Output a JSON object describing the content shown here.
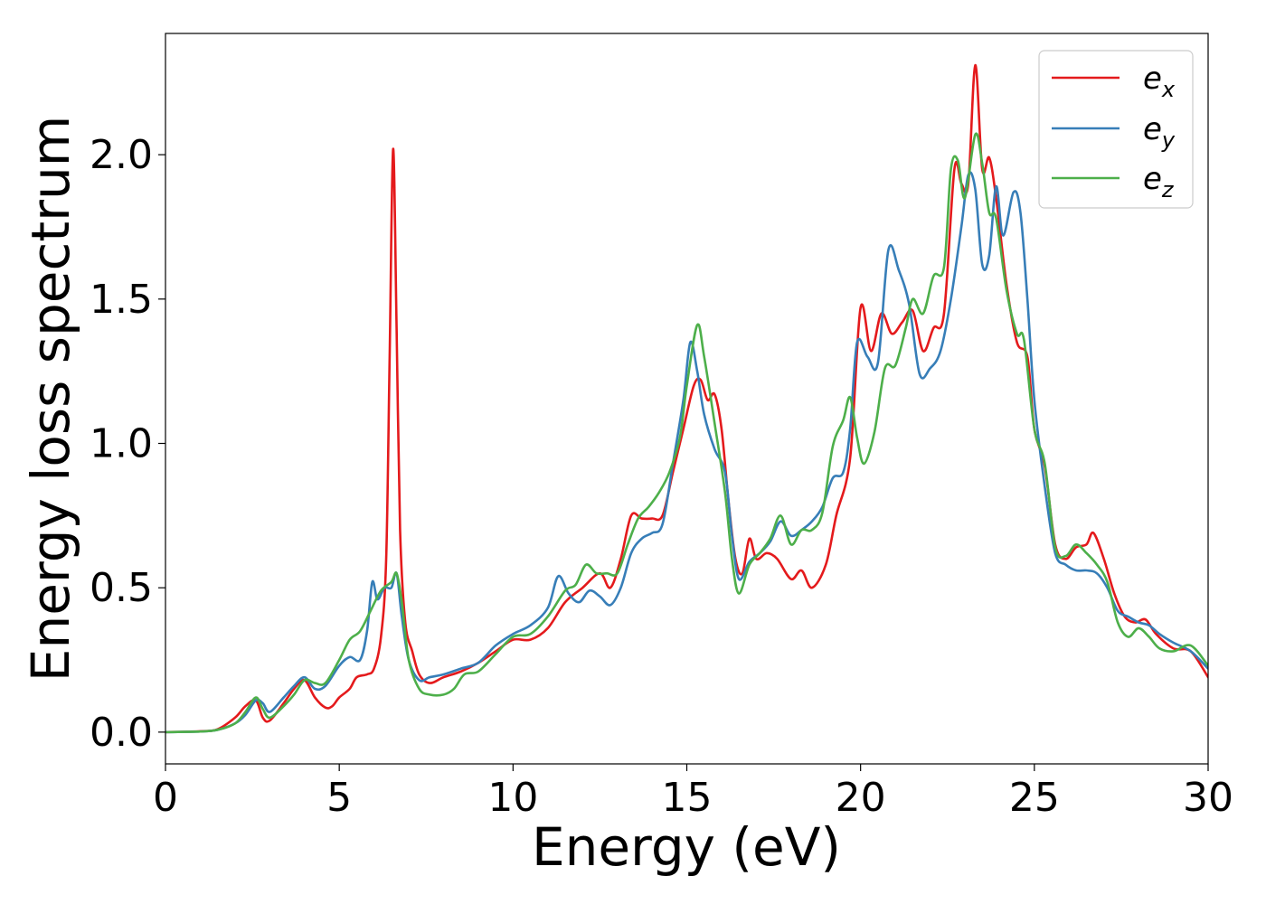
{
  "chart_data": {
    "type": "line",
    "title": "",
    "xlabel": "Energy (eV)",
    "ylabel": "Energy loss spectrum",
    "xlim": [
      0,
      30
    ],
    "ylim": [
      -0.11,
      2.42
    ],
    "x_ticks": [
      "0",
      "5",
      "10",
      "15",
      "20",
      "25",
      "30"
    ],
    "y_ticks": [
      "0.0",
      "0.5",
      "1.0",
      "1.5",
      "2.0"
    ],
    "grid": false,
    "legend_position": "top-right",
    "legend": [
      {
        "base": "e",
        "sub": "x"
      },
      {
        "base": "e",
        "sub": "y"
      },
      {
        "base": "e",
        "sub": "z"
      }
    ],
    "series": [
      {
        "name": "e_x",
        "color": "#e41a1c",
        "points": [
          [
            0,
            0
          ],
          [
            1,
            0.003
          ],
          [
            1.5,
            0.01
          ],
          [
            2,
            0.05
          ],
          [
            2.3,
            0.09
          ],
          [
            2.6,
            0.11
          ],
          [
            2.8,
            0.05
          ],
          [
            3.0,
            0.04
          ],
          [
            3.4,
            0.1
          ],
          [
            3.7,
            0.15
          ],
          [
            4.0,
            0.18
          ],
          [
            4.3,
            0.12
          ],
          [
            4.6,
            0.085
          ],
          [
            4.8,
            0.09
          ],
          [
            5.0,
            0.12
          ],
          [
            5.3,
            0.15
          ],
          [
            5.5,
            0.19
          ],
          [
            5.8,
            0.2
          ],
          [
            6.0,
            0.22
          ],
          [
            6.2,
            0.33
          ],
          [
            6.35,
            0.6
          ],
          [
            6.45,
            1.3
          ],
          [
            6.55,
            2.02
          ],
          [
            6.65,
            1.4
          ],
          [
            6.75,
            0.7
          ],
          [
            6.9,
            0.38
          ],
          [
            7.1,
            0.28
          ],
          [
            7.3,
            0.2
          ],
          [
            7.6,
            0.17
          ],
          [
            8.0,
            0.19
          ],
          [
            8.5,
            0.21
          ],
          [
            9.0,
            0.24
          ],
          [
            9.5,
            0.28
          ],
          [
            10,
            0.32
          ],
          [
            10.5,
            0.32
          ],
          [
            11,
            0.36
          ],
          [
            11.5,
            0.45
          ],
          [
            12,
            0.5
          ],
          [
            12.5,
            0.55
          ],
          [
            12.8,
            0.5
          ],
          [
            13.1,
            0.6
          ],
          [
            13.4,
            0.75
          ],
          [
            13.7,
            0.74
          ],
          [
            14.0,
            0.74
          ],
          [
            14.3,
            0.75
          ],
          [
            14.6,
            0.9
          ],
          [
            14.9,
            1.05
          ],
          [
            15.2,
            1.2
          ],
          [
            15.4,
            1.22
          ],
          [
            15.6,
            1.15
          ],
          [
            15.8,
            1.17
          ],
          [
            16.0,
            1.05
          ],
          [
            16.2,
            0.8
          ],
          [
            16.4,
            0.6
          ],
          [
            16.6,
            0.55
          ],
          [
            16.8,
            0.67
          ],
          [
            17.0,
            0.6
          ],
          [
            17.3,
            0.62
          ],
          [
            17.6,
            0.6
          ],
          [
            18.0,
            0.53
          ],
          [
            18.3,
            0.56
          ],
          [
            18.6,
            0.5
          ],
          [
            19.0,
            0.58
          ],
          [
            19.3,
            0.75
          ],
          [
            19.7,
            0.95
          ],
          [
            20.0,
            1.47
          ],
          [
            20.3,
            1.32
          ],
          [
            20.6,
            1.45
          ],
          [
            20.9,
            1.38
          ],
          [
            21.2,
            1.42
          ],
          [
            21.5,
            1.46
          ],
          [
            21.8,
            1.32
          ],
          [
            22.1,
            1.4
          ],
          [
            22.4,
            1.45
          ],
          [
            22.7,
            1.95
          ],
          [
            22.9,
            1.9
          ],
          [
            23.1,
            1.9
          ],
          [
            23.3,
            2.31
          ],
          [
            23.5,
            1.95
          ],
          [
            23.7,
            1.99
          ],
          [
            23.9,
            1.85
          ],
          [
            24.2,
            1.55
          ],
          [
            24.5,
            1.35
          ],
          [
            24.8,
            1.3
          ],
          [
            25.0,
            1.05
          ],
          [
            25.3,
            0.92
          ],
          [
            25.6,
            0.65
          ],
          [
            25.9,
            0.6
          ],
          [
            26.2,
            0.64
          ],
          [
            26.5,
            0.65
          ],
          [
            26.7,
            0.69
          ],
          [
            27.0,
            0.6
          ],
          [
            27.3,
            0.48
          ],
          [
            27.6,
            0.4
          ],
          [
            27.9,
            0.38
          ],
          [
            28.2,
            0.39
          ],
          [
            28.5,
            0.34
          ],
          [
            29.0,
            0.29
          ],
          [
            29.5,
            0.28
          ],
          [
            30.0,
            0.19
          ]
        ]
      },
      {
        "name": "e_y",
        "color": "#377eb8",
        "points": [
          [
            0,
            0
          ],
          [
            1,
            0.002
          ],
          [
            1.5,
            0.008
          ],
          [
            2,
            0.03
          ],
          [
            2.3,
            0.06
          ],
          [
            2.6,
            0.11
          ],
          [
            2.8,
            0.1
          ],
          [
            3.0,
            0.07
          ],
          [
            3.4,
            0.12
          ],
          [
            3.7,
            0.16
          ],
          [
            4.0,
            0.19
          ],
          [
            4.3,
            0.15
          ],
          [
            4.6,
            0.16
          ],
          [
            5.0,
            0.23
          ],
          [
            5.3,
            0.26
          ],
          [
            5.6,
            0.25
          ],
          [
            5.8,
            0.35
          ],
          [
            5.95,
            0.52
          ],
          [
            6.1,
            0.46
          ],
          [
            6.3,
            0.5
          ],
          [
            6.5,
            0.5
          ],
          [
            6.65,
            0.55
          ],
          [
            6.8,
            0.4
          ],
          [
            7.0,
            0.25
          ],
          [
            7.3,
            0.18
          ],
          [
            7.6,
            0.19
          ],
          [
            8.0,
            0.2
          ],
          [
            8.5,
            0.22
          ],
          [
            9.0,
            0.24
          ],
          [
            9.5,
            0.3
          ],
          [
            10,
            0.34
          ],
          [
            10.5,
            0.37
          ],
          [
            11,
            0.43
          ],
          [
            11.3,
            0.54
          ],
          [
            11.6,
            0.48
          ],
          [
            11.9,
            0.45
          ],
          [
            12.2,
            0.49
          ],
          [
            12.5,
            0.47
          ],
          [
            12.8,
            0.44
          ],
          [
            13.1,
            0.5
          ],
          [
            13.4,
            0.62
          ],
          [
            13.7,
            0.67
          ],
          [
            14.0,
            0.69
          ],
          [
            14.3,
            0.72
          ],
          [
            14.6,
            0.93
          ],
          [
            14.9,
            1.15
          ],
          [
            15.1,
            1.35
          ],
          [
            15.3,
            1.25
          ],
          [
            15.5,
            1.1
          ],
          [
            15.8,
            0.98
          ],
          [
            16.1,
            0.9
          ],
          [
            16.3,
            0.68
          ],
          [
            16.5,
            0.53
          ],
          [
            16.8,
            0.59
          ],
          [
            17.1,
            0.62
          ],
          [
            17.4,
            0.66
          ],
          [
            17.7,
            0.73
          ],
          [
            18.0,
            0.68
          ],
          [
            18.3,
            0.7
          ],
          [
            18.6,
            0.73
          ],
          [
            18.9,
            0.78
          ],
          [
            19.2,
            0.88
          ],
          [
            19.5,
            0.9
          ],
          [
            19.7,
            1.05
          ],
          [
            19.9,
            1.35
          ],
          [
            20.2,
            1.3
          ],
          [
            20.5,
            1.28
          ],
          [
            20.8,
            1.67
          ],
          [
            21.1,
            1.6
          ],
          [
            21.4,
            1.48
          ],
          [
            21.7,
            1.24
          ],
          [
            22.0,
            1.26
          ],
          [
            22.3,
            1.32
          ],
          [
            22.6,
            1.5
          ],
          [
            22.9,
            1.75
          ],
          [
            23.1,
            1.93
          ],
          [
            23.3,
            1.88
          ],
          [
            23.5,
            1.62
          ],
          [
            23.7,
            1.65
          ],
          [
            23.9,
            1.89
          ],
          [
            24.1,
            1.72
          ],
          [
            24.4,
            1.87
          ],
          [
            24.6,
            1.8
          ],
          [
            24.8,
            1.5
          ],
          [
            25.0,
            1.15
          ],
          [
            25.3,
            0.85
          ],
          [
            25.6,
            0.62
          ],
          [
            25.9,
            0.58
          ],
          [
            26.2,
            0.56
          ],
          [
            26.5,
            0.56
          ],
          [
            26.8,
            0.55
          ],
          [
            27.1,
            0.5
          ],
          [
            27.4,
            0.42
          ],
          [
            27.7,
            0.4
          ],
          [
            28.0,
            0.38
          ],
          [
            28.3,
            0.37
          ],
          [
            28.6,
            0.34
          ],
          [
            29.0,
            0.31
          ],
          [
            29.5,
            0.28
          ],
          [
            30.0,
            0.22
          ]
        ]
      },
      {
        "name": "e_z",
        "color": "#4daf4a",
        "points": [
          [
            0,
            0
          ],
          [
            1,
            0.002
          ],
          [
            1.5,
            0.008
          ],
          [
            2,
            0.03
          ],
          [
            2.3,
            0.07
          ],
          [
            2.6,
            0.12
          ],
          [
            2.8,
            0.08
          ],
          [
            3.0,
            0.05
          ],
          [
            3.4,
            0.09
          ],
          [
            3.7,
            0.13
          ],
          [
            4.0,
            0.18
          ],
          [
            4.3,
            0.17
          ],
          [
            4.6,
            0.17
          ],
          [
            5.0,
            0.25
          ],
          [
            5.3,
            0.32
          ],
          [
            5.6,
            0.35
          ],
          [
            5.9,
            0.42
          ],
          [
            6.2,
            0.49
          ],
          [
            6.5,
            0.52
          ],
          [
            6.65,
            0.55
          ],
          [
            6.8,
            0.45
          ],
          [
            7.0,
            0.25
          ],
          [
            7.3,
            0.15
          ],
          [
            7.6,
            0.13
          ],
          [
            8.0,
            0.13
          ],
          [
            8.3,
            0.15
          ],
          [
            8.6,
            0.2
          ],
          [
            9.0,
            0.21
          ],
          [
            9.5,
            0.27
          ],
          [
            10,
            0.33
          ],
          [
            10.5,
            0.34
          ],
          [
            11,
            0.4
          ],
          [
            11.5,
            0.49
          ],
          [
            11.8,
            0.51
          ],
          [
            12.1,
            0.58
          ],
          [
            12.4,
            0.55
          ],
          [
            12.7,
            0.55
          ],
          [
            13.0,
            0.55
          ],
          [
            13.3,
            0.65
          ],
          [
            13.6,
            0.74
          ],
          [
            13.9,
            0.78
          ],
          [
            14.2,
            0.83
          ],
          [
            14.5,
            0.9
          ],
          [
            14.8,
            1.02
          ],
          [
            15.0,
            1.2
          ],
          [
            15.3,
            1.41
          ],
          [
            15.5,
            1.3
          ],
          [
            15.8,
            1.07
          ],
          [
            16.1,
            0.83
          ],
          [
            16.3,
            0.6
          ],
          [
            16.5,
            0.48
          ],
          [
            16.8,
            0.58
          ],
          [
            17.1,
            0.62
          ],
          [
            17.4,
            0.67
          ],
          [
            17.7,
            0.75
          ],
          [
            18.0,
            0.65
          ],
          [
            18.3,
            0.7
          ],
          [
            18.6,
            0.7
          ],
          [
            18.9,
            0.76
          ],
          [
            19.2,
            0.99
          ],
          [
            19.5,
            1.08
          ],
          [
            19.7,
            1.16
          ],
          [
            19.9,
            1.02
          ],
          [
            20.1,
            0.93
          ],
          [
            20.4,
            1.04
          ],
          [
            20.7,
            1.26
          ],
          [
            21.0,
            1.27
          ],
          [
            21.3,
            1.4
          ],
          [
            21.5,
            1.5
          ],
          [
            21.8,
            1.45
          ],
          [
            22.1,
            1.58
          ],
          [
            22.4,
            1.61
          ],
          [
            22.6,
            1.95
          ],
          [
            22.8,
            1.98
          ],
          [
            23.0,
            1.85
          ],
          [
            23.3,
            2.07
          ],
          [
            23.5,
            1.97
          ],
          [
            23.7,
            1.8
          ],
          [
            23.9,
            1.78
          ],
          [
            24.2,
            1.53
          ],
          [
            24.5,
            1.38
          ],
          [
            24.7,
            1.36
          ],
          [
            25.0,
            1.05
          ],
          [
            25.3,
            0.93
          ],
          [
            25.6,
            0.64
          ],
          [
            25.9,
            0.61
          ],
          [
            26.2,
            0.65
          ],
          [
            26.5,
            0.62
          ],
          [
            26.8,
            0.58
          ],
          [
            27.1,
            0.52
          ],
          [
            27.4,
            0.38
          ],
          [
            27.7,
            0.33
          ],
          [
            28.0,
            0.36
          ],
          [
            28.3,
            0.33
          ],
          [
            28.6,
            0.29
          ],
          [
            29.0,
            0.28
          ],
          [
            29.5,
            0.3
          ],
          [
            30.0,
            0.23
          ]
        ]
      }
    ]
  }
}
